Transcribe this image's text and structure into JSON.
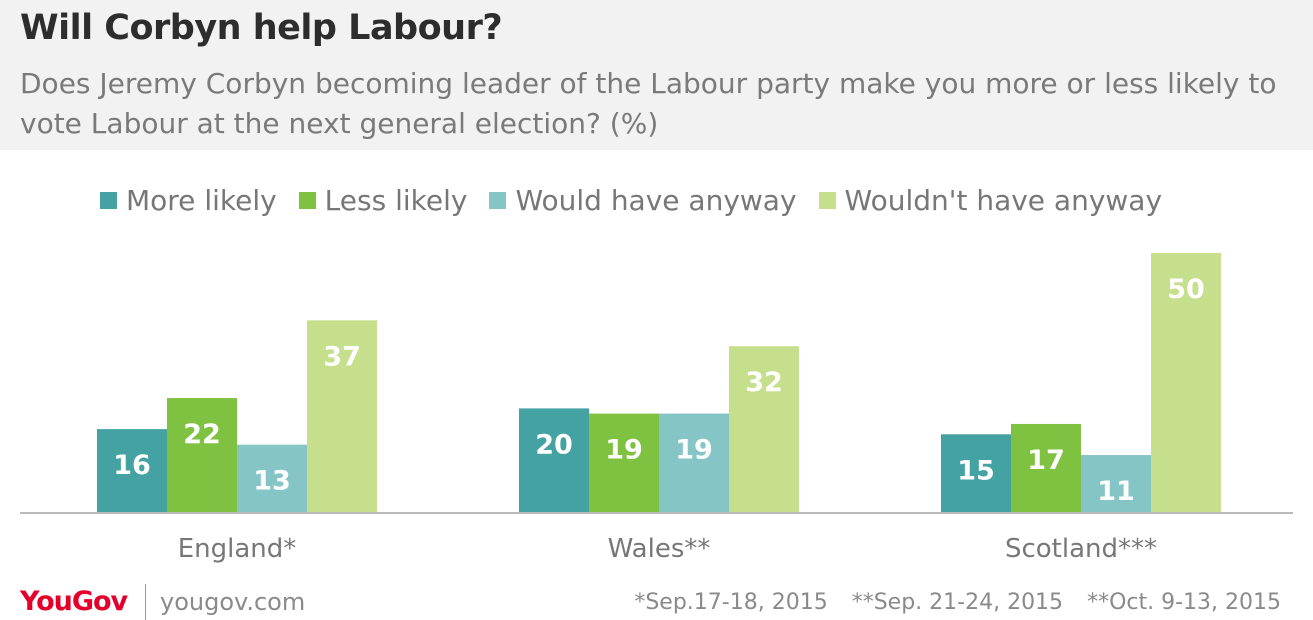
{
  "title": "Will Corbyn help Labour?",
  "subtitle": "Does Jeremy Corbyn becoming leader of the Labour party make you more or less likely to vote Labour at the next general election? (%)",
  "colors": {
    "more_likely": "#44a2a2",
    "less_likely": "#7fc242",
    "would_have_anyway": "#86c5c6",
    "wouldnt_have_anyway": "#c6df8c",
    "axis": "#bbbbbb"
  },
  "chart_data": {
    "type": "bar",
    "categories": [
      "England*",
      "Wales**",
      "Scotland***"
    ],
    "series": [
      {
        "name": "More likely",
        "values": [
          16,
          20,
          15
        ]
      },
      {
        "name": "Less likely",
        "values": [
          22,
          19,
          17
        ]
      },
      {
        "name": "Would have anyway",
        "values": [
          13,
          19,
          11
        ]
      },
      {
        "name": "Wouldn't have anyway",
        "values": [
          37,
          32,
          50
        ]
      }
    ],
    "ylim": [
      0,
      50
    ],
    "grid": false,
    "legend": "top",
    "data_labels": true
  },
  "footer": {
    "brand": "YouGov",
    "url": "yougov.com",
    "notes": [
      "*Sep.17-18, 2015",
      "**Sep. 21-24, 2015",
      "**Oct. 9-13, 2015"
    ]
  }
}
